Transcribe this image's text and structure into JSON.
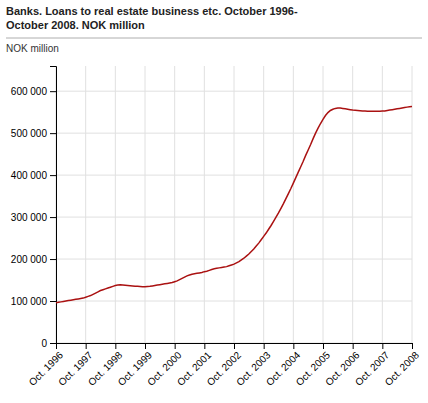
{
  "chart_data": {
    "type": "line",
    "title": "Banks. Loans to real estate business etc. October 1996-",
    "subtitle": "October 2008. NOK million",
    "ylabel": "NOK million",
    "color": "#aa1111",
    "grid": true,
    "xlim": [
      0,
      144
    ],
    "xticks": [
      {
        "value": 0,
        "label": "Oct. 1996"
      },
      {
        "value": 12,
        "label": "Oct. 1997"
      },
      {
        "value": 24,
        "label": "Oct. 1998"
      },
      {
        "value": 36,
        "label": "Oct. 1999"
      },
      {
        "value": 48,
        "label": "Oct. 2000"
      },
      {
        "value": 60,
        "label": "Oct. 2001"
      },
      {
        "value": 72,
        "label": "Oct. 2002"
      },
      {
        "value": 84,
        "label": "Oct. 2003"
      },
      {
        "value": 96,
        "label": "Oct. 2004"
      },
      {
        "value": 108,
        "label": "Oct. 2005"
      },
      {
        "value": 120,
        "label": "Oct. 2006"
      },
      {
        "value": 132,
        "label": "Oct. 2007"
      },
      {
        "value": 144,
        "label": "Oct. 2008"
      }
    ],
    "ylim": [
      0,
      660000
    ],
    "yticks": [
      0,
      {
        "value": 100000,
        "label": "100 000"
      },
      {
        "value": 200000,
        "label": "200 000"
      },
      {
        "value": 300000,
        "label": "300 000"
      },
      {
        "value": 400000,
        "label": "400 000"
      },
      {
        "value": 500000,
        "label": "500 000"
      },
      {
        "value": 600000,
        "label": "600 000"
      }
    ],
    "x": [
      0,
      1,
      2,
      3,
      4,
      5,
      6,
      7,
      8,
      9,
      10,
      11,
      12,
      13,
      14,
      15,
      16,
      17,
      18,
      19,
      20,
      21,
      22,
      23,
      24,
      25,
      26,
      27,
      28,
      29,
      30,
      31,
      32,
      33,
      34,
      35,
      36,
      37,
      38,
      39,
      40,
      41,
      42,
      43,
      44,
      45,
      46,
      47,
      48,
      49,
      50,
      51,
      52,
      53,
      54,
      55,
      56,
      57,
      58,
      59,
      60,
      61,
      62,
      63,
      64,
      65,
      66,
      67,
      68,
      69,
      70,
      71,
      72,
      73,
      74,
      75,
      76,
      77,
      78,
      79,
      80,
      81,
      82,
      83,
      84,
      85,
      86,
      87,
      88,
      89,
      90,
      91,
      92,
      93,
      94,
      95,
      96,
      97,
      98,
      99,
      100,
      101,
      102,
      103,
      104,
      105,
      106,
      107,
      108,
      109,
      110,
      111,
      112,
      113,
      114,
      115,
      116,
      117,
      118,
      119,
      120,
      121,
      122,
      123,
      124,
      125,
      126,
      127,
      128,
      129,
      130,
      131,
      132,
      133,
      134,
      135,
      136,
      137,
      138,
      139,
      140,
      141,
      142,
      143,
      144
    ],
    "values": [
      96000,
      97000,
      98000,
      99000,
      100000,
      101000,
      102000,
      103000,
      104000,
      105000,
      106000,
      107000,
      109000,
      111000,
      113000,
      116000,
      119000,
      122000,
      125000,
      127000,
      129000,
      131000,
      133000,
      135000,
      137000,
      138000,
      138500,
      138000,
      137500,
      137000,
      136500,
      136000,
      135500,
      135000,
      134500,
      134000,
      134000,
      134500,
      135000,
      136000,
      137000,
      138000,
      139000,
      140000,
      141000,
      142000,
      143000,
      144000,
      146000,
      148000,
      151000,
      154000,
      157000,
      160000,
      162000,
      164000,
      165000,
      166000,
      167000,
      168000,
      170000,
      171000,
      173000,
      175000,
      177000,
      178000,
      179000,
      180000,
      181000,
      182000,
      184000,
      186000,
      188000,
      191000,
      194000,
      198000,
      202000,
      207000,
      212000,
      218000,
      224000,
      231000,
      238000,
      246000,
      254000,
      262000,
      271000,
      280000,
      290000,
      300000,
      310000,
      321000,
      332000,
      344000,
      356000,
      368000,
      381000,
      394000,
      407000,
      420000,
      433000,
      447000,
      460000,
      473000,
      487000,
      500000,
      512000,
      523000,
      533000,
      542000,
      549000,
      554000,
      557000,
      559000,
      560000,
      560000,
      559000,
      558000,
      557000,
      556000,
      555000,
      554500,
      554000,
      553500,
      553000,
      552500,
      552000,
      552000,
      552000,
      552000,
      552000,
      552000,
      552500,
      553000,
      554000,
      555000,
      556000,
      557000,
      558000,
      559000,
      560000,
      561000,
      562000,
      563000,
      563500
    ]
  }
}
